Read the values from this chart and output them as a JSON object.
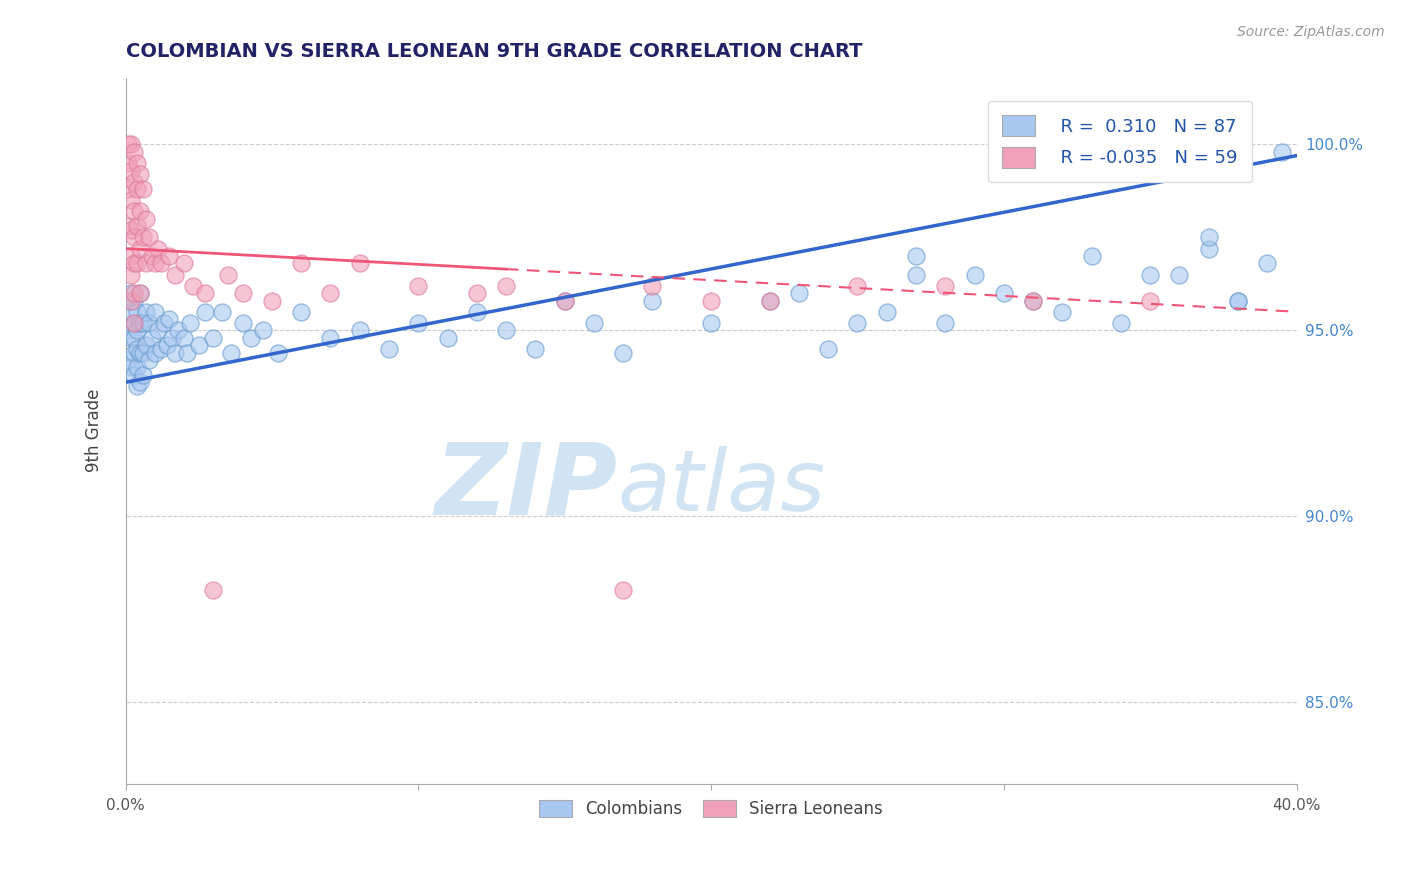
{
  "title": "COLOMBIAN VS SIERRA LEONEAN 9TH GRADE CORRELATION CHART",
  "source_text": "Source: ZipAtlas.com",
  "ylabel": "9th Grade",
  "xlim": [
    0.0,
    0.4
  ],
  "ylim": [
    0.828,
    1.018
  ],
  "xtick_vals": [
    0.0,
    0.1,
    0.2,
    0.3,
    0.4
  ],
  "xtick_labels": [
    "0.0%",
    "",
    "",
    "",
    "40.0%"
  ],
  "ytick_vals": [
    0.85,
    0.9,
    0.95,
    1.0
  ],
  "ytick_labels": [
    "85.0%",
    "90.0%",
    "95.0%",
    "100.0%"
  ],
  "grid_color": "#cccccc",
  "background_color": "#ffffff",
  "colombian_color": "#a8c8f0",
  "sierraleone_color": "#f0a0b8",
  "blue_line_color": "#3366cc",
  "pink_line_color": "#ee5577",
  "r_colombian": 0.31,
  "n_colombian": 87,
  "r_sierraleone": -0.035,
  "n_sierraleone": 59,
  "legend_r_color": "#2255aa",
  "watermark_color": "#d0e4f4",
  "legend_label_colombians": "Colombians",
  "legend_label_sierraleoneans": "Sierra Leoneans",
  "colombian_x": [
    0.001,
    0.001,
    0.001,
    0.002,
    0.002,
    0.002,
    0.002,
    0.003,
    0.003,
    0.003,
    0.003,
    0.003,
    0.004,
    0.004,
    0.004,
    0.004,
    0.004,
    0.005,
    0.005,
    0.005,
    0.005,
    0.006,
    0.006,
    0.006,
    0.007,
    0.007,
    0.008,
    0.008,
    0.009,
    0.01,
    0.01,
    0.011,
    0.012,
    0.013,
    0.014,
    0.015,
    0.016,
    0.017,
    0.018,
    0.02,
    0.021,
    0.022,
    0.025,
    0.027,
    0.03,
    0.033,
    0.036,
    0.04,
    0.043,
    0.047,
    0.052,
    0.06,
    0.07,
    0.08,
    0.09,
    0.1,
    0.11,
    0.12,
    0.13,
    0.14,
    0.15,
    0.16,
    0.17,
    0.18,
    0.2,
    0.22,
    0.24,
    0.26,
    0.27,
    0.28,
    0.3,
    0.32,
    0.33,
    0.35,
    0.37,
    0.38,
    0.39,
    0.395,
    0.38,
    0.37,
    0.36,
    0.34,
    0.31,
    0.29,
    0.27,
    0.25,
    0.23
  ],
  "colombian_y": [
    0.958,
    0.95,
    0.942,
    0.96,
    0.948,
    0.955,
    0.94,
    0.958,
    0.948,
    0.938,
    0.952,
    0.944,
    0.955,
    0.945,
    0.935,
    0.95,
    0.94,
    0.952,
    0.944,
    0.936,
    0.96,
    0.952,
    0.944,
    0.938,
    0.955,
    0.946,
    0.952,
    0.942,
    0.948,
    0.955,
    0.944,
    0.95,
    0.945,
    0.952,
    0.946,
    0.953,
    0.948,
    0.944,
    0.95,
    0.948,
    0.944,
    0.952,
    0.946,
    0.955,
    0.948,
    0.955,
    0.944,
    0.952,
    0.948,
    0.95,
    0.944,
    0.955,
    0.948,
    0.95,
    0.945,
    0.952,
    0.948,
    0.955,
    0.95,
    0.945,
    0.958,
    0.952,
    0.944,
    0.958,
    0.952,
    0.958,
    0.945,
    0.955,
    0.965,
    0.952,
    0.96,
    0.955,
    0.97,
    0.965,
    0.972,
    0.958,
    0.968,
    0.998,
    0.958,
    0.975,
    0.965,
    0.952,
    0.958,
    0.965,
    0.97,
    0.952,
    0.96
  ],
  "sierraleone_x": [
    0.001,
    0.001,
    0.001,
    0.001,
    0.002,
    0.002,
    0.002,
    0.002,
    0.002,
    0.002,
    0.002,
    0.003,
    0.003,
    0.003,
    0.003,
    0.003,
    0.003,
    0.003,
    0.004,
    0.004,
    0.004,
    0.004,
    0.005,
    0.005,
    0.005,
    0.005,
    0.006,
    0.006,
    0.007,
    0.007,
    0.008,
    0.009,
    0.01,
    0.011,
    0.012,
    0.015,
    0.017,
    0.02,
    0.023,
    0.027,
    0.03,
    0.035,
    0.04,
    0.05,
    0.06,
    0.07,
    0.08,
    0.1,
    0.12,
    0.15,
    0.18,
    0.22,
    0.28,
    0.31,
    0.35,
    0.25,
    0.2,
    0.17,
    0.13
  ],
  "sierraleone_y": [
    1.0,
    0.995,
    0.988,
    0.978,
    1.0,
    0.993,
    0.985,
    0.977,
    0.97,
    0.965,
    0.958,
    0.998,
    0.99,
    0.982,
    0.975,
    0.968,
    0.96,
    0.952,
    0.995,
    0.988,
    0.978,
    0.968,
    0.992,
    0.982,
    0.972,
    0.96,
    0.988,
    0.975,
    0.98,
    0.968,
    0.975,
    0.97,
    0.968,
    0.972,
    0.968,
    0.97,
    0.965,
    0.968,
    0.962,
    0.96,
    0.88,
    0.965,
    0.96,
    0.958,
    0.968,
    0.96,
    0.968,
    0.962,
    0.96,
    0.958,
    0.962,
    0.958,
    0.962,
    0.958,
    0.958,
    0.962,
    0.958,
    0.88,
    0.962
  ]
}
